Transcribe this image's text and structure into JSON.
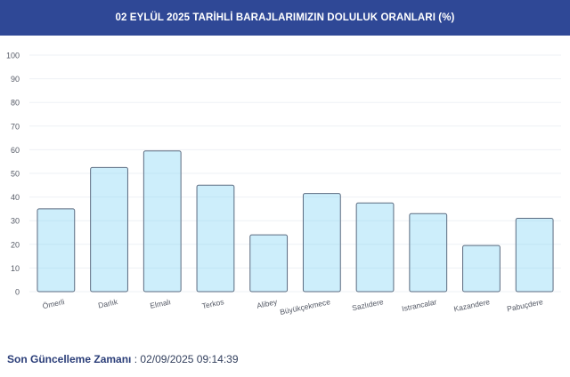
{
  "header": {
    "title": "02 EYLÜL 2025 TARİHLİ BARAJLARIMIZIN DOLULUK ORANLARI (%)"
  },
  "chart_data": {
    "type": "bar",
    "categories": [
      "Ömerli",
      "Darlık",
      "Elmalı",
      "Terkos",
      "Alibey",
      "Büyükçekmece",
      "Sazlıdere",
      "Istrancalar",
      "Kazandere",
      "Pabuçdere"
    ],
    "values": [
      35,
      52.5,
      59.5,
      45,
      24,
      41.5,
      37.5,
      33,
      19.5,
      31
    ],
    "y_ticks": [
      0,
      10,
      20,
      30,
      40,
      50,
      60,
      70,
      80,
      90,
      100
    ],
    "ylim": [
      0,
      100
    ],
    "grid": true,
    "bar_fill": "#cdeefb",
    "bar_stroke": "#5b6b80"
  },
  "footer": {
    "label": "Son Güncelleme Zamanı",
    "separator": " : ",
    "value": "02/09/2025 09:14:39"
  }
}
